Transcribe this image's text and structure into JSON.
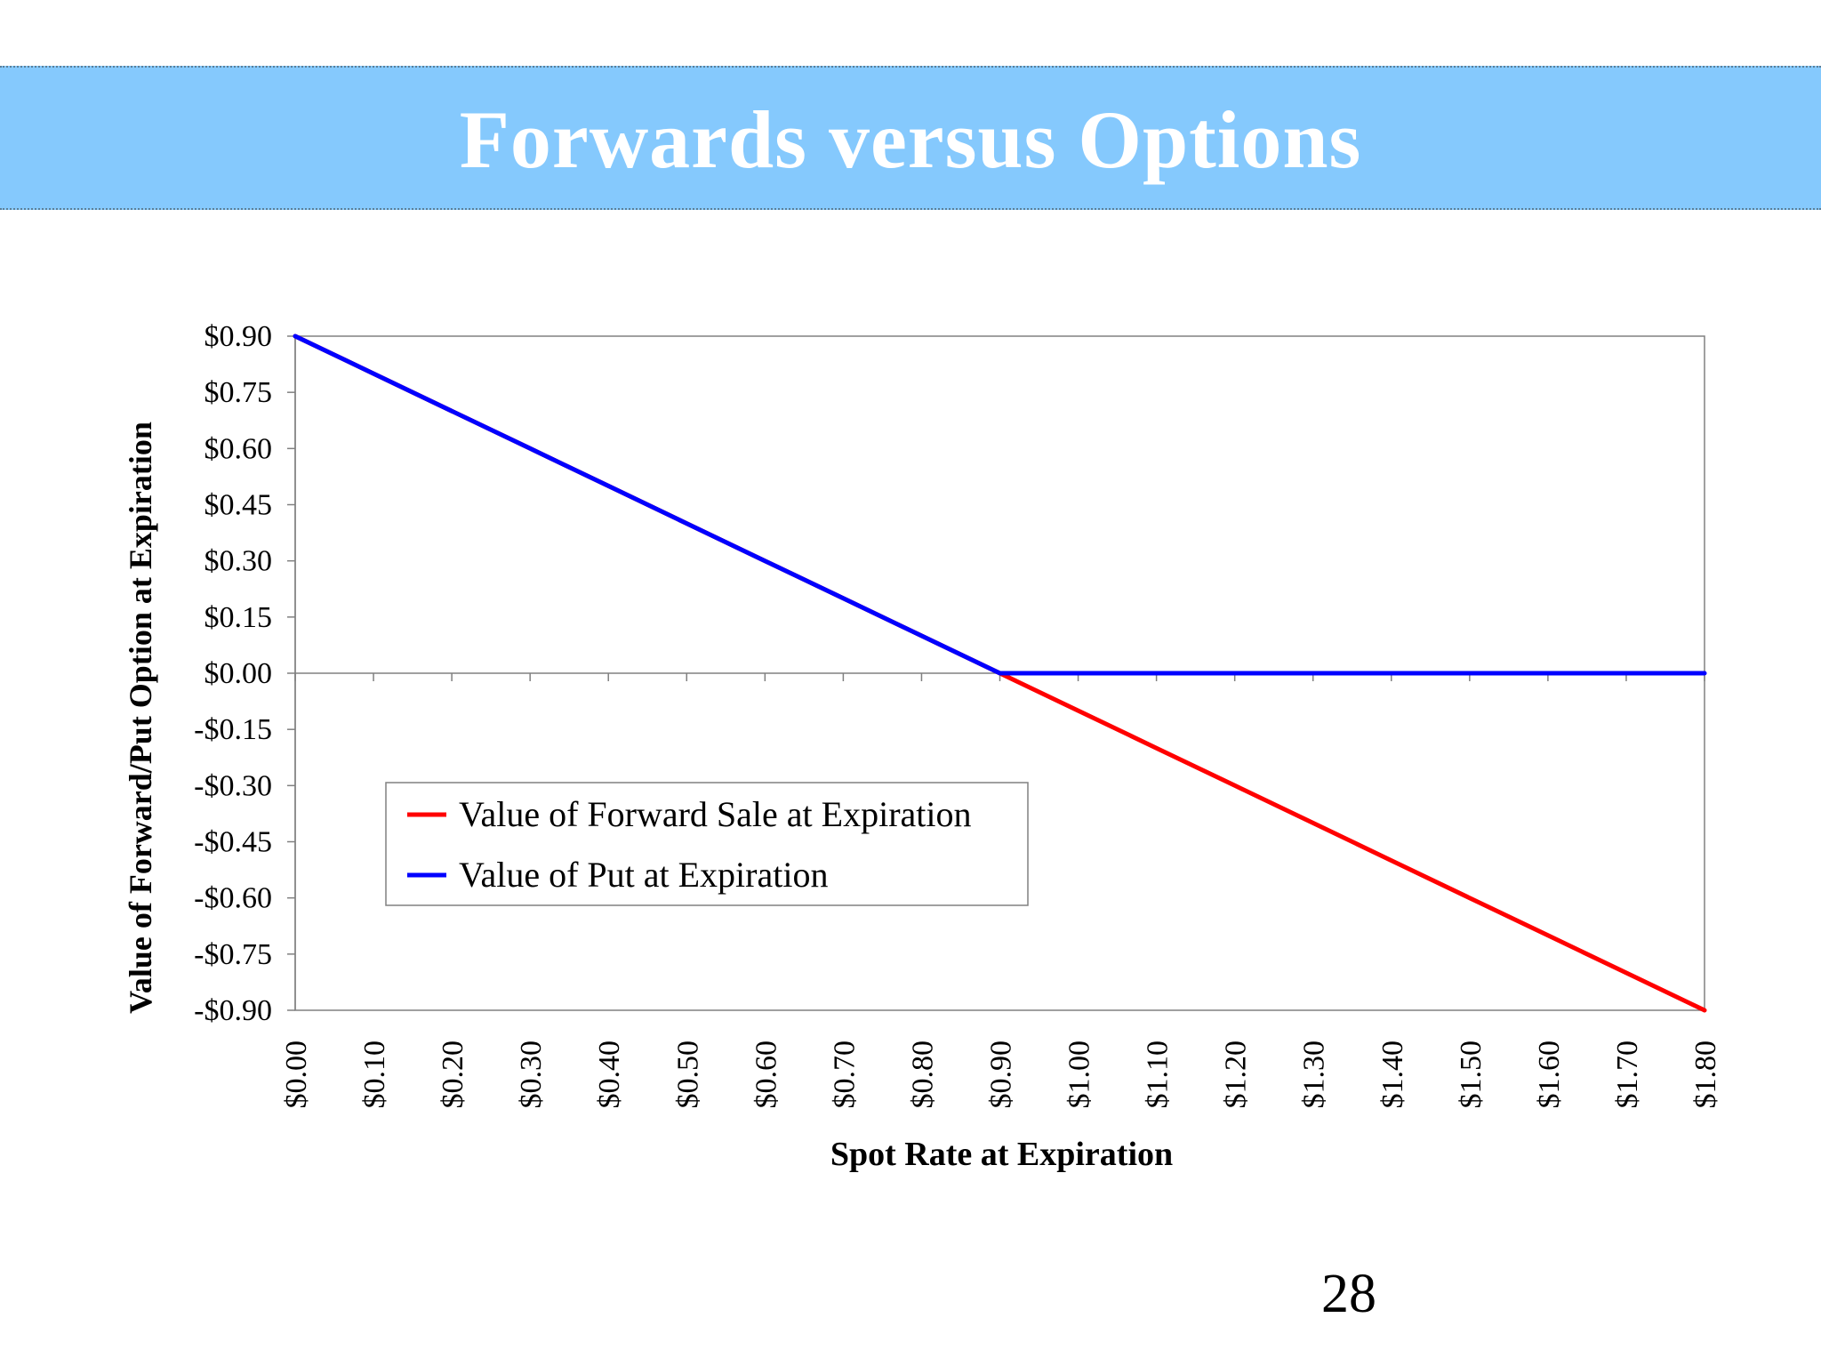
{
  "slide": {
    "title": "Forwards versus Options",
    "page_number": "28"
  },
  "colors": {
    "banner": "#85c9fd",
    "forward": "#ff0000",
    "put": "#0000ff"
  },
  "chart_data": {
    "type": "line",
    "xlabel": "Spot Rate at Expiration",
    "ylabel": "Value of Forward/Put Option at Expiration",
    "x": [
      0.0,
      0.1,
      0.2,
      0.3,
      0.4,
      0.5,
      0.6,
      0.7,
      0.8,
      0.9,
      1.0,
      1.1,
      1.2,
      1.3,
      1.4,
      1.5,
      1.6,
      1.7,
      1.8
    ],
    "x_tick_labels": [
      "$0.00",
      "$0.10",
      "$0.20",
      "$0.30",
      "$0.40",
      "$0.50",
      "$0.60",
      "$0.70",
      "$0.80",
      "$0.90",
      "$1.00",
      "$1.10",
      "$1.20",
      "$1.30",
      "$1.40",
      "$1.50",
      "$1.60",
      "$1.70",
      "$1.80"
    ],
    "y_ticks": [
      0.9,
      0.75,
      0.6,
      0.45,
      0.3,
      0.15,
      0.0,
      -0.15,
      -0.3,
      -0.45,
      -0.6,
      -0.75,
      -0.9
    ],
    "y_tick_labels": [
      "$0.90",
      "$0.75",
      "$0.60",
      "$0.45",
      "$0.30",
      "$0.15",
      "$0.00",
      "-$0.15",
      "-$0.30",
      "-$0.45",
      "-$0.60",
      "-$0.75",
      "-$0.90"
    ],
    "xlim": [
      0.0,
      1.8
    ],
    "ylim": [
      -0.9,
      0.9
    ],
    "grid": false,
    "legend_position": "lower-left",
    "series": [
      {
        "name": "Value of Forward Sale at Expiration",
        "color": "#ff0000",
        "values": [
          0.9,
          0.8,
          0.7,
          0.6,
          0.5,
          0.4,
          0.3,
          0.2,
          0.1,
          0.0,
          -0.1,
          -0.2,
          -0.3,
          -0.4,
          -0.5,
          -0.6,
          -0.7,
          -0.8,
          -0.9
        ]
      },
      {
        "name": "Value of Put at Expiration",
        "color": "#0000ff",
        "values": [
          0.9,
          0.8,
          0.7,
          0.6,
          0.5,
          0.4,
          0.3,
          0.2,
          0.1,
          0.0,
          0.0,
          0.0,
          0.0,
          0.0,
          0.0,
          0.0,
          0.0,
          0.0,
          0.0
        ]
      }
    ]
  }
}
